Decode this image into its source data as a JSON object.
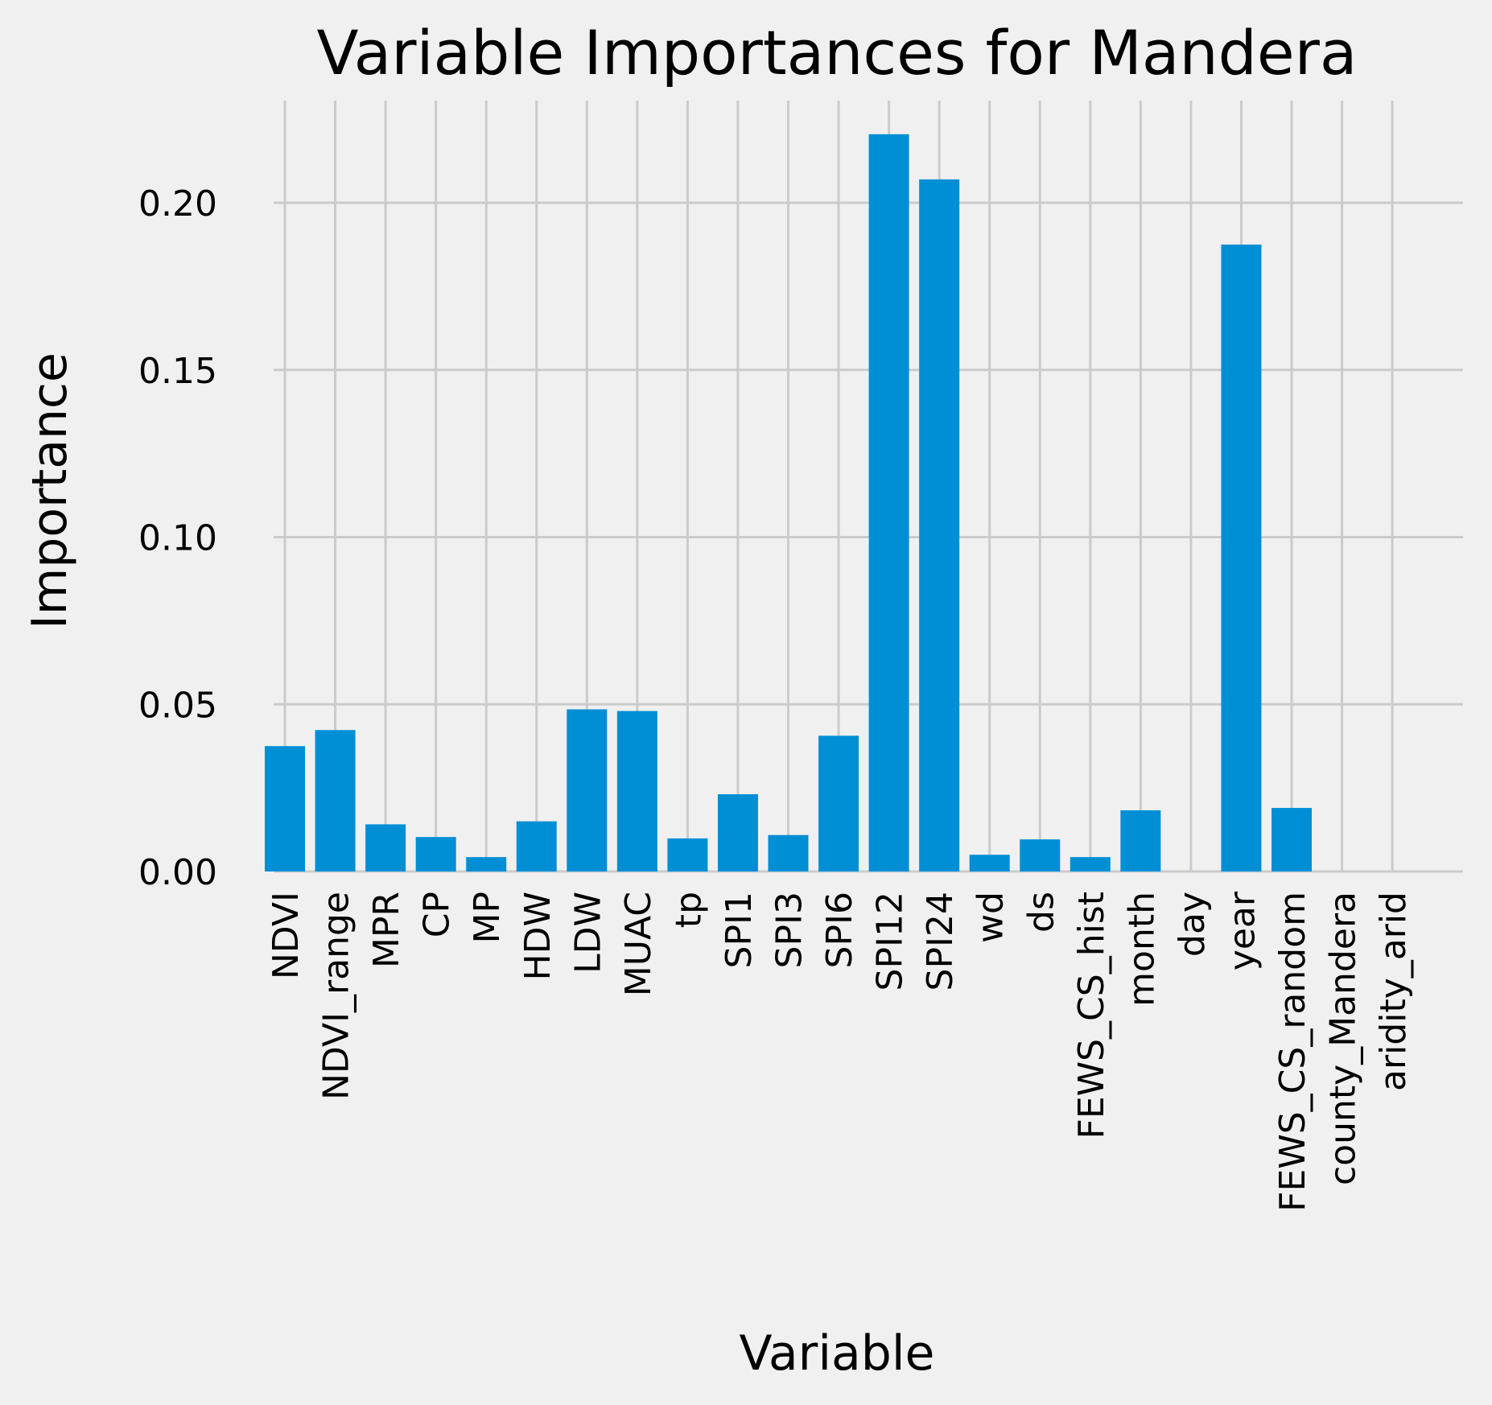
{
  "chart_data": {
    "type": "bar",
    "title": "Variable Importances for Mandera",
    "xlabel": "Variable",
    "ylabel": "Importance",
    "ylim": [
      0,
      0.22
    ],
    "yticks": [
      "0.00",
      "0.05",
      "0.10",
      "0.15",
      "0.20"
    ],
    "grid": true,
    "categories": [
      "NDVI",
      "NDVI_range",
      "MPR",
      "CP",
      "MP",
      "HDW",
      "LDW",
      "MUAC",
      "tp",
      "SPI1",
      "SPI3",
      "SPI6",
      "SPI12",
      "SPI24",
      "wd",
      "ds",
      "FEWS_CS_hist",
      "month",
      "day",
      "year",
      "FEWS_CS_random",
      "county_Mandera",
      "aridity_arid"
    ],
    "values": [
      0.0375,
      0.0423,
      0.0141,
      0.0103,
      0.0043,
      0.015,
      0.0485,
      0.048,
      0.0099,
      0.0231,
      0.0109,
      0.0406,
      0.2205,
      0.207,
      0.005,
      0.0096,
      0.0043,
      0.0183,
      0.0,
      0.1875,
      0.019,
      0.0,
      0.0
    ],
    "color": "#008fd5"
  }
}
